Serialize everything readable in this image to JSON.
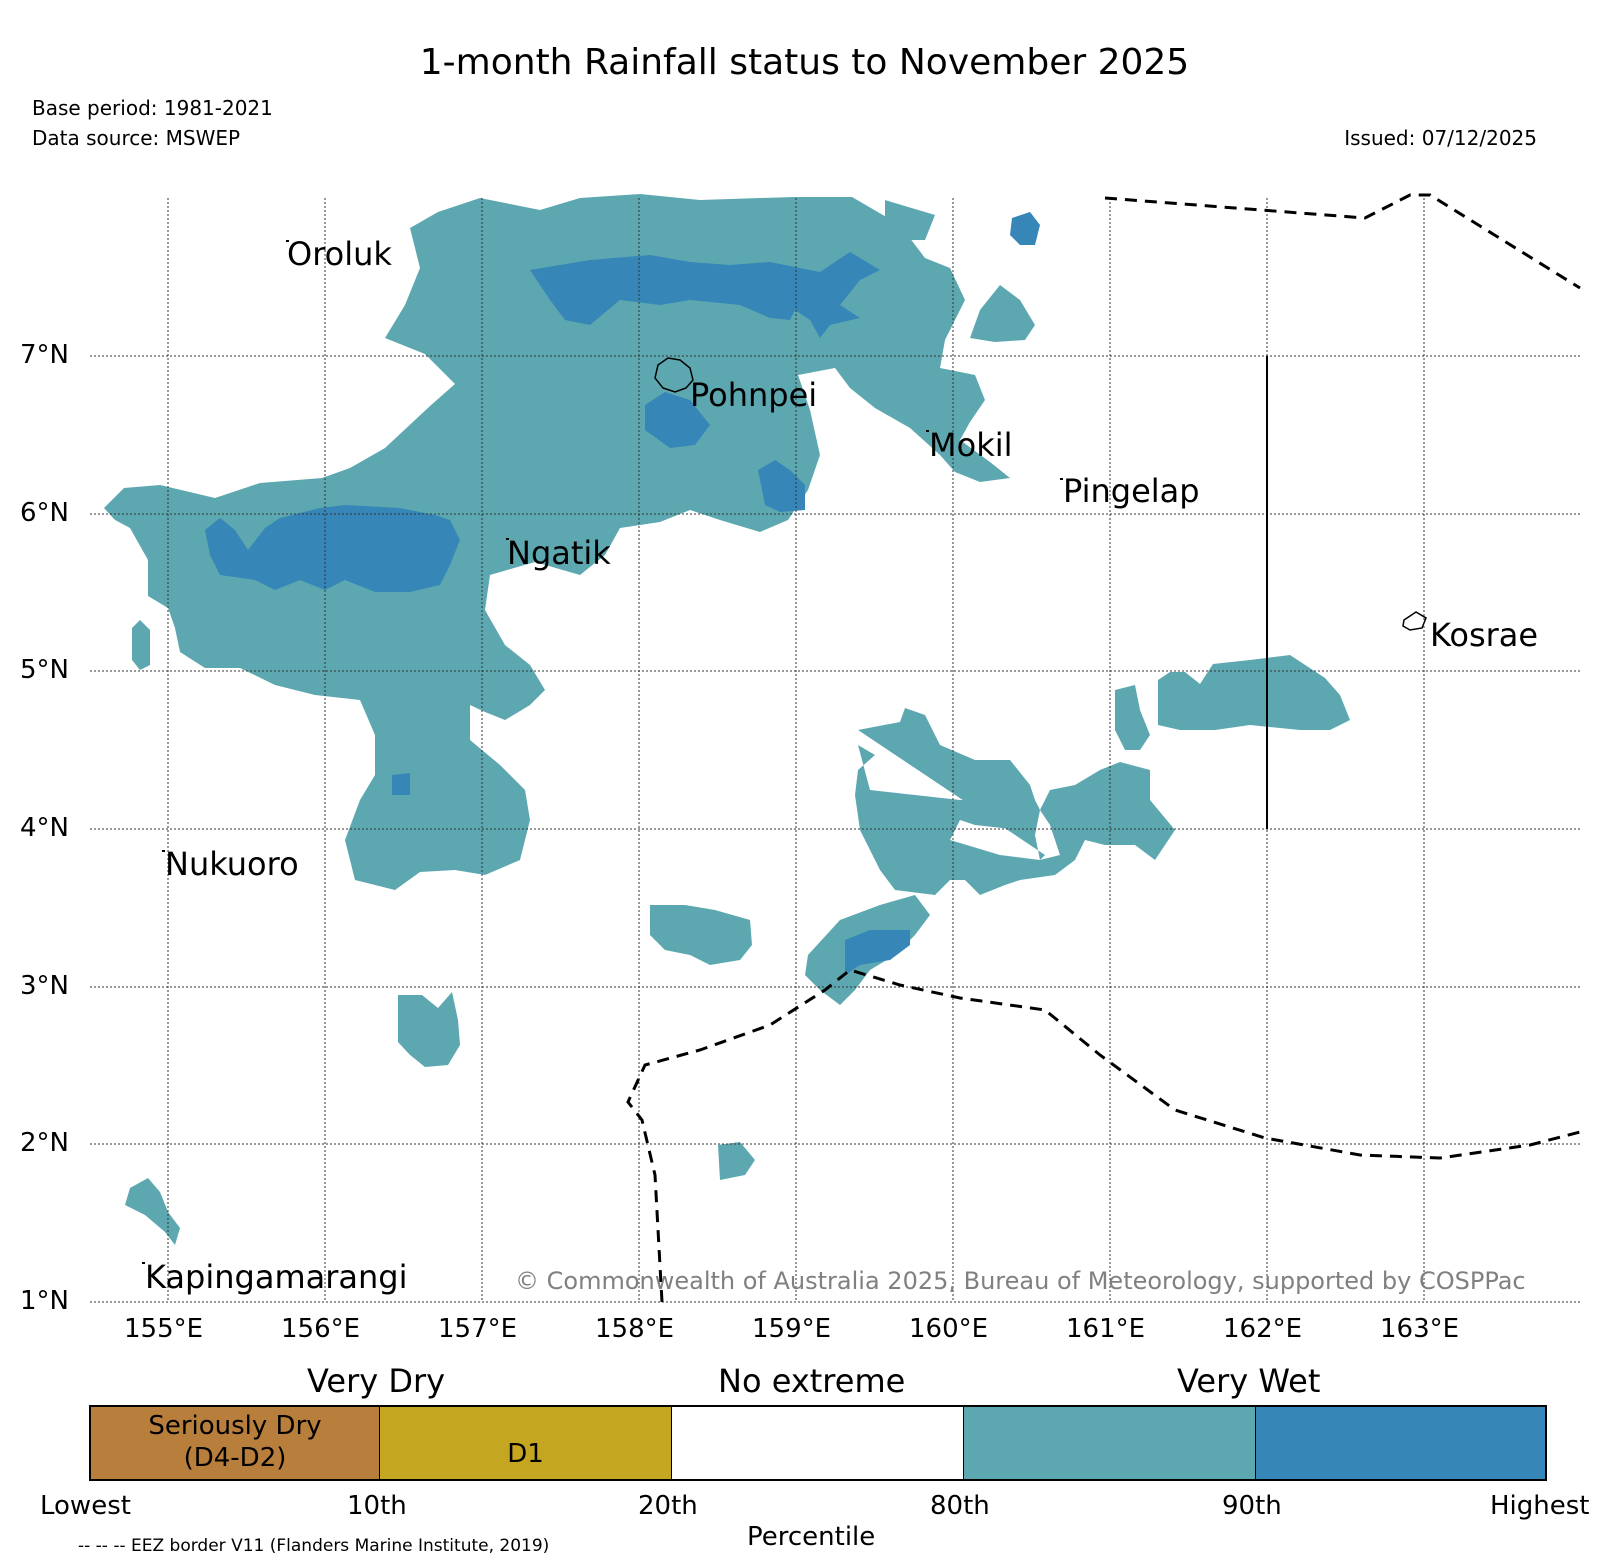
{
  "header": {
    "title": "1-month Rainfall status to November 2025",
    "base_period": "Base period: 1981-2021",
    "data_source": "Data source: MSWEP",
    "issued": "Issued: 07/12/2025"
  },
  "map": {
    "lon_labels": [
      "155°E",
      "156°E",
      "157°E",
      "158°E",
      "159°E",
      "160°E",
      "161°E",
      "162°E",
      "163°E"
    ],
    "lat_labels": [
      "7°N",
      "6°N",
      "5°N",
      "4°N",
      "3°N",
      "2°N",
      "1°N"
    ],
    "places": [
      "Oroluk",
      "Pohnpei",
      "Mokil",
      "Pingelap",
      "Ngatik",
      "Kosrae",
      "Nukuoro",
      "Kapingamarangi"
    ],
    "copyright": "© Commonwealth of Australia 2025, Bureau of Meteorology, supported by COSPPac",
    "colors": {
      "wet": "#5da8b0",
      "very_wet": "#3686b8",
      "eez": "#000000",
      "grid": "#333333"
    }
  },
  "legend": {
    "groups": [
      "Very Dry",
      "No extreme",
      "Very Wet"
    ],
    "segments": [
      {
        "label": "Seriously Dry",
        "sublabel": "(D4-D2)",
        "color": "#b87e3b"
      },
      {
        "label": "D1",
        "color": "#c4a620"
      },
      {
        "label": "",
        "color": "#ffffff"
      },
      {
        "label": "",
        "color": "#5da8b0"
      },
      {
        "label": "",
        "color": "#3686b8"
      }
    ],
    "ticks": [
      "Lowest",
      "10th",
      "20th",
      "80th",
      "90th",
      "Highest"
    ],
    "axis_label": "Percentile",
    "eez_note": "-- -- -- EEZ border V11 (Flanders Marine Institute, 2019)"
  }
}
